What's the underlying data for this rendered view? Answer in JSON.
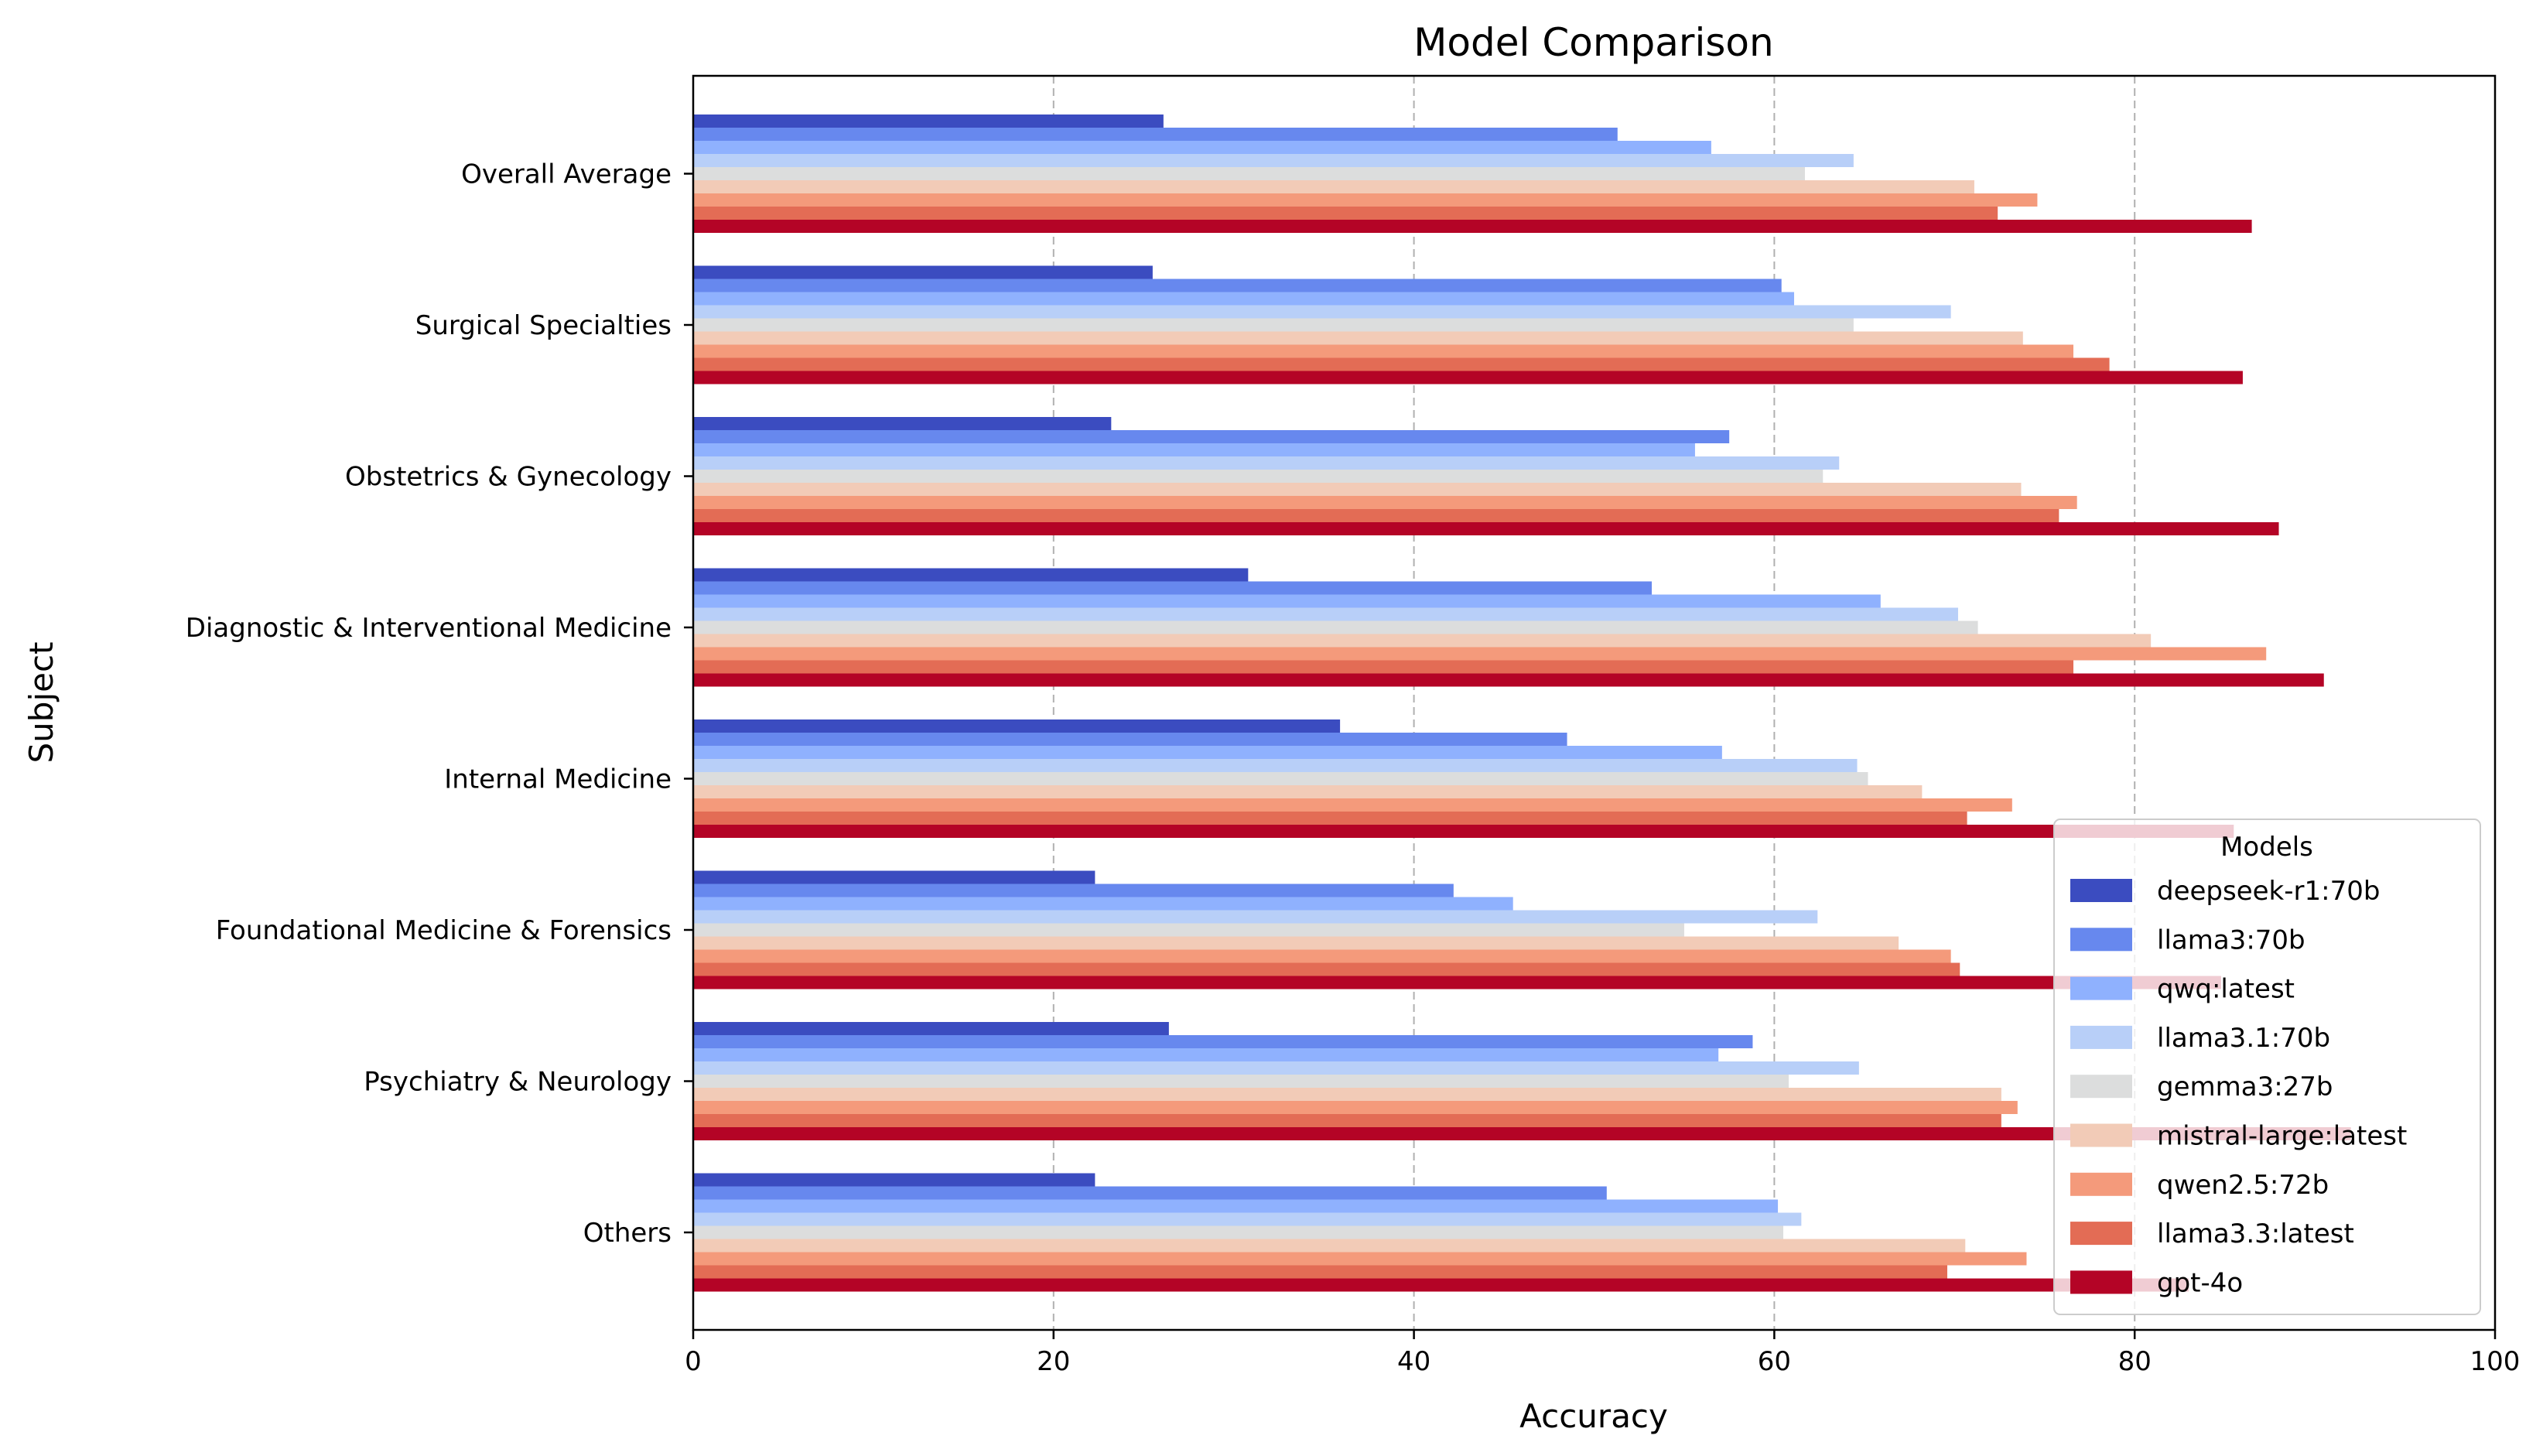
{
  "chart_data": {
    "type": "bar",
    "orientation": "horizontal",
    "title": "Model Comparison",
    "xlabel": "Accuracy",
    "ylabel": "Subject",
    "xlim": [
      0,
      100
    ],
    "xticks": [
      0,
      20,
      40,
      60,
      80,
      100
    ],
    "grid": "vertical dashed",
    "legend_title": "Models",
    "legend_position": "lower-right",
    "categories": [
      "Overall Average",
      "Surgical Specialties",
      "Obstetrics & Gynecology",
      "Diagnostic & Interventional Medicine",
      "Internal Medicine",
      "Foundational Medicine & Forensics",
      "Psychiatry & Neurology",
      "Others"
    ],
    "series": [
      {
        "name": "deepseek-r1:70b",
        "color": "#3b4cc0",
        "values": [
          26.1,
          25.5,
          23.2,
          30.8,
          35.9,
          22.3,
          26.4,
          22.3
        ]
      },
      {
        "name": "llama3:70b",
        "color": "#6788ee",
        "values": [
          51.3,
          60.4,
          57.5,
          53.2,
          48.5,
          42.2,
          58.8,
          50.7
        ]
      },
      {
        "name": "qwq:latest",
        "color": "#8fb1fe",
        "values": [
          56.5,
          61.1,
          55.6,
          65.9,
          57.1,
          45.5,
          56.9,
          60.2
        ]
      },
      {
        "name": "llama3.1:70b",
        "color": "#b8cff8",
        "values": [
          64.4,
          69.8,
          63.6,
          70.2,
          64.6,
          62.4,
          64.7,
          61.5
        ]
      },
      {
        "name": "gemma3:27b",
        "color": "#dcdddd",
        "values": [
          61.7,
          64.4,
          62.7,
          71.3,
          65.2,
          55.0,
          60.8,
          60.5
        ]
      },
      {
        "name": "mistral-large:latest",
        "color": "#f2cbb7",
        "values": [
          71.1,
          73.8,
          73.7,
          80.9,
          68.2,
          66.9,
          72.6,
          70.6
        ]
      },
      {
        "name": "qwen2.5:72b",
        "color": "#f49a7b",
        "values": [
          74.6,
          76.6,
          76.8,
          87.3,
          73.2,
          69.8,
          73.5,
          74.0
        ]
      },
      {
        "name": "llama3.3:latest",
        "color": "#e36c55",
        "values": [
          72.4,
          78.6,
          75.8,
          76.6,
          70.7,
          70.3,
          72.6,
          69.6
        ]
      },
      {
        "name": "gpt-4o",
        "color": "#b40426",
        "values": [
          86.5,
          86.0,
          88.0,
          90.5,
          85.5,
          84.8,
          92.0,
          83.0
        ]
      }
    ]
  }
}
